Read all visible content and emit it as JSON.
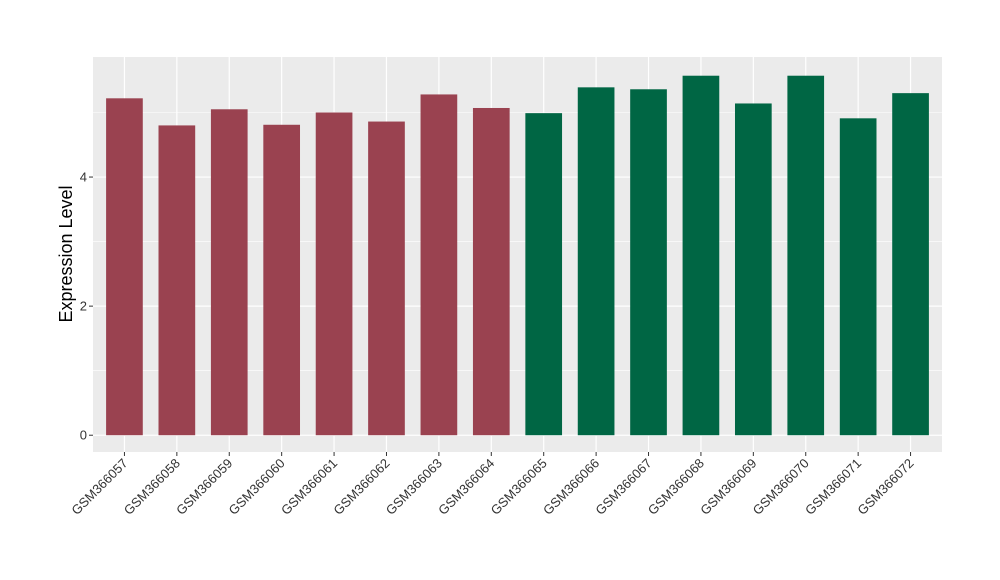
{
  "chart_data": {
    "type": "bar",
    "title": "",
    "xlabel": "",
    "ylabel": "Expression Level",
    "ylim": [
      -0.26,
      5.86
    ],
    "yticks": [
      0,
      2,
      4
    ],
    "grid": true,
    "legend": "none",
    "panel_background": "#ebebeb",
    "grid_color": "#ffffff",
    "categories": [
      "GSM366057",
      "GSM366058",
      "GSM366059",
      "GSM366060",
      "GSM366061",
      "GSM366062",
      "GSM366063",
      "GSM366064",
      "GSM366065",
      "GSM366066",
      "GSM366067",
      "GSM366068",
      "GSM366069",
      "GSM366070",
      "GSM366071",
      "GSM366072"
    ],
    "values": [
      5.22,
      4.8,
      5.05,
      4.81,
      5.0,
      4.86,
      5.28,
      5.07,
      4.99,
      5.39,
      5.36,
      5.57,
      5.14,
      5.57,
      4.91,
      5.3
    ],
    "bar_colors": [
      "#9a4250",
      "#9a4250",
      "#9a4250",
      "#9a4250",
      "#9a4250",
      "#9a4250",
      "#9a4250",
      "#9a4250",
      "#006644",
      "#006644",
      "#006644",
      "#006644",
      "#006644",
      "#006644",
      "#006644",
      "#006644"
    ]
  }
}
